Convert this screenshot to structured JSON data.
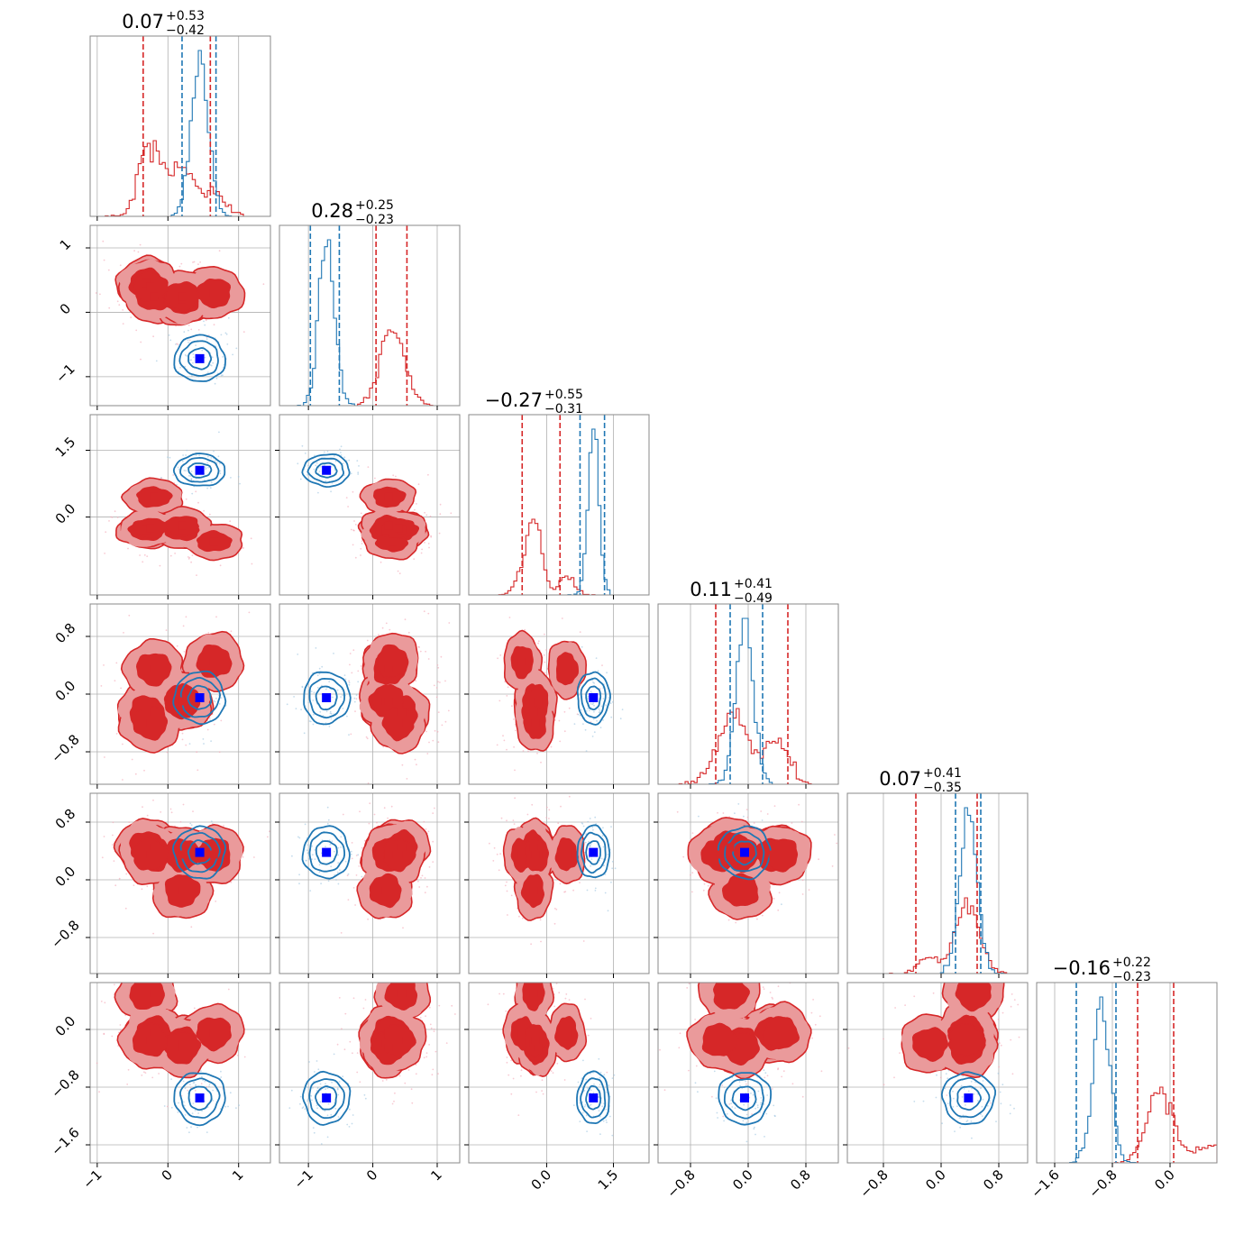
{
  "chart_data": {
    "type": "corner",
    "n_params": 6,
    "colors": {
      "red": "#d62728",
      "red_light": "#ea9a9b",
      "blue": "#1f77b4",
      "marker_blue": "#0000ff",
      "grid": "#b0b0b0"
    },
    "ranges": [
      [
        -1.1,
        1.45
      ],
      [
        -1.45,
        1.35
      ],
      [
        -1.75,
        2.3
      ],
      [
        -1.25,
        1.25
      ],
      [
        -1.3,
        1.2
      ],
      [
        -1.85,
        0.65
      ]
    ],
    "titles": [
      {
        "median": "0.07",
        "plus": "+0.53",
        "minus": "−0.42"
      },
      {
        "median": "0.28",
        "plus": "+0.25",
        "minus": "−0.23"
      },
      {
        "median": "−0.27",
        "plus": "+0.55",
        "minus": "−0.31"
      },
      {
        "median": "0.11",
        "plus": "+0.41",
        "minus": "−0.49"
      },
      {
        "median": "0.07",
        "plus": "+0.41",
        "minus": "−0.35"
      },
      {
        "median": "−0.16",
        "plus": "+0.22",
        "minus": "−0.23"
      }
    ],
    "x_ticks": [
      [
        {
          "v": -1,
          "label": "−1"
        },
        {
          "v": 0,
          "label": "0"
        },
        {
          "v": 1,
          "label": "1"
        }
      ],
      [
        {
          "v": -1,
          "label": "−1"
        },
        {
          "v": 0,
          "label": "0"
        },
        {
          "v": 1,
          "label": "1"
        }
      ],
      [
        {
          "v": 0,
          "label": "0.0"
        },
        {
          "v": 1.5,
          "label": "1.5"
        }
      ],
      [
        {
          "v": -0.8,
          "label": "−0.8"
        },
        {
          "v": 0,
          "label": "0.0"
        },
        {
          "v": 0.8,
          "label": "0.8"
        }
      ],
      [
        {
          "v": -0.8,
          "label": "−0.8"
        },
        {
          "v": 0,
          "label": "0.0"
        },
        {
          "v": 0.8,
          "label": "0.8"
        }
      ],
      [
        {
          "v": -1.6,
          "label": "−1.6"
        },
        {
          "v": -0.8,
          "label": "−0.8"
        },
        {
          "v": 0,
          "label": "0.0"
        }
      ]
    ],
    "y_ticks": [
      [],
      [
        {
          "v": 1,
          "label": "1"
        },
        {
          "v": 0,
          "label": "0"
        },
        {
          "v": -1,
          "label": "−1"
        }
      ],
      [
        {
          "v": 1.5,
          "label": "1.5"
        },
        {
          "v": 0,
          "label": "0.0"
        }
      ],
      [
        {
          "v": 0.8,
          "label": "0.8"
        },
        {
          "v": 0,
          "label": "0.0"
        },
        {
          "v": -0.8,
          "label": "−0.8"
        }
      ],
      [
        {
          "v": 0.8,
          "label": "0.8"
        },
        {
          "v": 0,
          "label": "0.0"
        },
        {
          "v": -0.8,
          "label": "−0.8"
        }
      ],
      [
        {
          "v": 0,
          "label": "0.0"
        },
        {
          "v": -0.8,
          "label": "−0.8"
        },
        {
          "v": -1.6,
          "label": "−1.6"
        }
      ]
    ],
    "red_modes": [
      [
        -0.3,
        0.45,
        -0.3,
        -0.25,
        0.45,
        0.5
      ],
      [
        -0.2,
        0.25,
        0.45,
        0.35,
        0.35,
        -0.05
      ],
      [
        0.2,
        0.2,
        -0.3,
        -0.1,
        -0.15,
        -0.2
      ],
      [
        0.65,
        0.3,
        -0.55,
        0.45,
        0.35,
        -0.05
      ],
      [
        0.2,
        0.25,
        -0.2,
        -0.1,
        0.35,
        -0.25
      ],
      [
        -0.25,
        0.4,
        -0.25,
        -0.4,
        0.35,
        -0.15
      ]
    ],
    "blue_center": [
      0.45,
      -0.72,
      1.05,
      -0.05,
      0.38,
      -0.95
    ],
    "red_quantiles": [
      [
        -0.35,
        0.6
      ],
      [
        0.05,
        0.53
      ],
      [
        -0.55,
        0.3
      ],
      [
        -0.45,
        0.55
      ],
      [
        -0.35,
        0.5
      ],
      [
        -0.45,
        0.05
      ]
    ],
    "blue_quantiles": [
      [
        0.2,
        0.68
      ],
      [
        -0.97,
        -0.52
      ],
      [
        0.75,
        1.3
      ],
      [
        -0.25,
        0.2
      ],
      [
        0.2,
        0.55
      ],
      [
        -1.3,
        -0.75
      ]
    ]
  }
}
